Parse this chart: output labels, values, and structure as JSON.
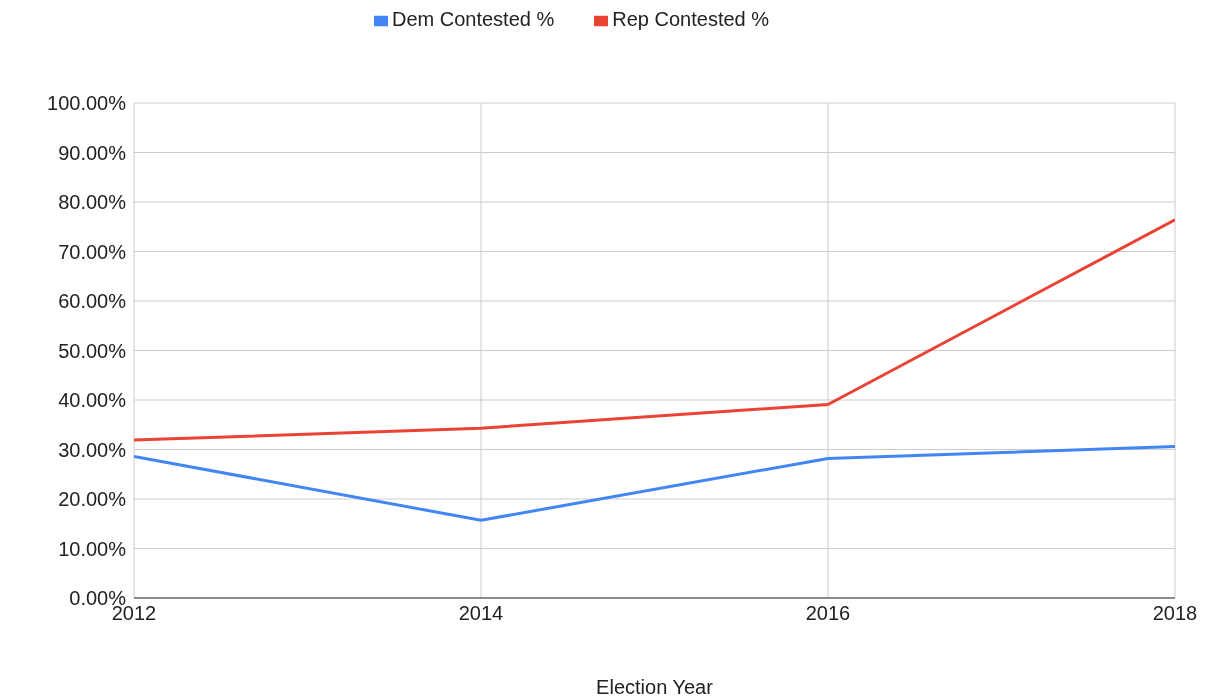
{
  "chart_data": {
    "type": "line",
    "xlabel": "Election Year",
    "x": [
      2012,
      2014,
      2016,
      2018
    ],
    "series": [
      {
        "name": "Dem Contested %",
        "color": "#4285f4",
        "values": [
          28.6,
          15.7,
          28.2,
          30.6
        ]
      },
      {
        "name": "Rep Contested %",
        "color": "#ea4335",
        "values": [
          31.9,
          34.3,
          39.1,
          76.4
        ]
      }
    ],
    "xlim": [
      2012,
      2018
    ],
    "xticks": [
      2012,
      2014,
      2016,
      2018
    ],
    "ylim": [
      0,
      100
    ],
    "yticks": [
      {
        "value": 0,
        "label": "0.00%"
      },
      {
        "value": 10,
        "label": "10.00%"
      },
      {
        "value": 20,
        "label": "20.00%"
      },
      {
        "value": 30,
        "label": "30.00%"
      },
      {
        "value": 40,
        "label": "40.00%"
      },
      {
        "value": 50,
        "label": "50.00%"
      },
      {
        "value": 60,
        "label": "60.00%"
      },
      {
        "value": 70,
        "label": "70.00%"
      },
      {
        "value": 80,
        "label": "80.00%"
      },
      {
        "value": 90,
        "label": "90.00%"
      },
      {
        "value": 100,
        "label": "100.00%"
      }
    ],
    "grid": true,
    "legend": "top",
    "marker": "none",
    "line_style": "solid"
  }
}
